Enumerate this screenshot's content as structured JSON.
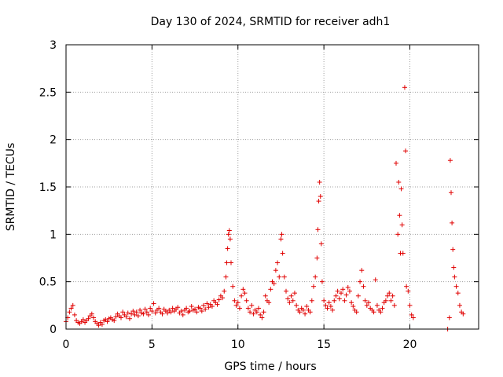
{
  "chart_data": {
    "type": "scatter",
    "title": "Day 130 of 2024, SRMTID for receiver adh1",
    "xlabel": "GPS time / hours",
    "ylabel": "SRMTID / TECUs",
    "xlim": [
      0,
      24
    ],
    "ylim": [
      0,
      3
    ],
    "xticks": [
      0,
      5,
      10,
      15,
      20
    ],
    "yticks": [
      0,
      0.5,
      1,
      1.5,
      2,
      2.5,
      3
    ],
    "xtick_labels": [
      "0",
      "5",
      "10",
      "15",
      "20"
    ],
    "ytick_labels": [
      "0",
      "0.5",
      "1",
      "1.5",
      "2",
      "2.5",
      "3"
    ],
    "grid": true,
    "marker": "+",
    "color": "#e00000",
    "series": [
      {
        "name": "adh1",
        "points": [
          [
            0.0,
            0.08
          ],
          [
            0.1,
            0.12
          ],
          [
            0.2,
            0.18
          ],
          [
            0.3,
            0.22
          ],
          [
            0.4,
            0.25
          ],
          [
            0.5,
            0.15
          ],
          [
            0.6,
            0.09
          ],
          [
            0.7,
            0.07
          ],
          [
            0.8,
            0.06
          ],
          [
            0.9,
            0.08
          ],
          [
            1.0,
            0.1
          ],
          [
            1.1,
            0.07
          ],
          [
            1.2,
            0.09
          ],
          [
            1.3,
            0.11
          ],
          [
            1.4,
            0.14
          ],
          [
            1.5,
            0.16
          ],
          [
            1.6,
            0.12
          ],
          [
            1.7,
            0.08
          ],
          [
            1.8,
            0.06
          ],
          [
            1.9,
            0.04
          ],
          [
            2.0,
            0.07
          ],
          [
            2.1,
            0.05
          ],
          [
            2.2,
            0.09
          ],
          [
            2.3,
            0.1
          ],
          [
            2.4,
            0.08
          ],
          [
            2.5,
            0.11
          ],
          [
            2.6,
            0.12
          ],
          [
            2.7,
            0.1
          ],
          [
            2.8,
            0.09
          ],
          [
            2.9,
            0.13
          ],
          [
            3.0,
            0.16
          ],
          [
            3.1,
            0.14
          ],
          [
            3.2,
            0.12
          ],
          [
            3.3,
            0.18
          ],
          [
            3.4,
            0.15
          ],
          [
            3.5,
            0.13
          ],
          [
            3.6,
            0.17
          ],
          [
            3.7,
            0.11
          ],
          [
            3.8,
            0.16
          ],
          [
            3.9,
            0.19
          ],
          [
            4.0,
            0.15
          ],
          [
            4.1,
            0.18
          ],
          [
            4.2,
            0.14
          ],
          [
            4.3,
            0.2
          ],
          [
            4.4,
            0.17
          ],
          [
            4.5,
            0.16
          ],
          [
            4.6,
            0.21
          ],
          [
            4.7,
            0.18
          ],
          [
            4.8,
            0.15
          ],
          [
            4.9,
            0.22
          ],
          [
            5.0,
            0.19
          ],
          [
            5.1,
            0.27
          ],
          [
            5.2,
            0.17
          ],
          [
            5.3,
            0.2
          ],
          [
            5.4,
            0.22
          ],
          [
            5.5,
            0.18
          ],
          [
            5.6,
            0.16
          ],
          [
            5.7,
            0.21
          ],
          [
            5.8,
            0.19
          ],
          [
            5.9,
            0.17
          ],
          [
            6.0,
            0.2
          ],
          [
            6.1,
            0.18
          ],
          [
            6.2,
            0.22
          ],
          [
            6.3,
            0.19
          ],
          [
            6.4,
            0.21
          ],
          [
            6.5,
            0.23
          ],
          [
            6.6,
            0.17
          ],
          [
            6.7,
            0.19
          ],
          [
            6.8,
            0.15
          ],
          [
            6.9,
            0.2
          ],
          [
            7.0,
            0.22
          ],
          [
            7.1,
            0.18
          ],
          [
            7.2,
            0.19
          ],
          [
            7.3,
            0.24
          ],
          [
            7.4,
            0.2
          ],
          [
            7.5,
            0.21
          ],
          [
            7.6,
            0.18
          ],
          [
            7.7,
            0.23
          ],
          [
            7.8,
            0.22
          ],
          [
            7.9,
            0.19
          ],
          [
            8.0,
            0.25
          ],
          [
            8.1,
            0.21
          ],
          [
            8.2,
            0.27
          ],
          [
            8.3,
            0.23
          ],
          [
            8.4,
            0.26
          ],
          [
            8.5,
            0.24
          ],
          [
            8.6,
            0.3
          ],
          [
            8.7,
            0.28
          ],
          [
            8.8,
            0.26
          ],
          [
            8.9,
            0.31
          ],
          [
            9.0,
            0.35
          ],
          [
            9.1,
            0.33
          ],
          [
            9.2,
            0.4
          ],
          [
            9.3,
            0.55
          ],
          [
            9.35,
            0.7
          ],
          [
            9.4,
            0.85
          ],
          [
            9.45,
            1.0
          ],
          [
            9.5,
            1.04
          ],
          [
            9.55,
            0.95
          ],
          [
            9.6,
            0.7
          ],
          [
            9.7,
            0.45
          ],
          [
            9.8,
            0.3
          ],
          [
            9.9,
            0.25
          ],
          [
            10.0,
            0.28
          ],
          [
            10.1,
            0.22
          ],
          [
            10.2,
            0.35
          ],
          [
            10.3,
            0.42
          ],
          [
            10.4,
            0.38
          ],
          [
            10.5,
            0.3
          ],
          [
            10.6,
            0.22
          ],
          [
            10.7,
            0.18
          ],
          [
            10.8,
            0.25
          ],
          [
            10.9,
            0.16
          ],
          [
            11.0,
            0.2
          ],
          [
            11.1,
            0.18
          ],
          [
            11.2,
            0.22
          ],
          [
            11.3,
            0.15
          ],
          [
            11.4,
            0.12
          ],
          [
            11.5,
            0.18
          ],
          [
            11.6,
            0.35
          ],
          [
            11.7,
            0.3
          ],
          [
            11.8,
            0.28
          ],
          [
            11.9,
            0.42
          ],
          [
            12.0,
            0.5
          ],
          [
            12.1,
            0.48
          ],
          [
            12.2,
            0.62
          ],
          [
            12.3,
            0.7
          ],
          [
            12.4,
            0.55
          ],
          [
            12.5,
            0.95
          ],
          [
            12.55,
            1.0
          ],
          [
            12.6,
            0.8
          ],
          [
            12.7,
            0.55
          ],
          [
            12.8,
            0.4
          ],
          [
            12.9,
            0.32
          ],
          [
            13.0,
            0.28
          ],
          [
            13.1,
            0.35
          ],
          [
            13.2,
            0.3
          ],
          [
            13.3,
            0.38
          ],
          [
            13.4,
            0.25
          ],
          [
            13.5,
            0.2
          ],
          [
            13.6,
            0.18
          ],
          [
            13.7,
            0.22
          ],
          [
            13.8,
            0.2
          ],
          [
            13.9,
            0.16
          ],
          [
            14.0,
            0.24
          ],
          [
            14.1,
            0.2
          ],
          [
            14.2,
            0.18
          ],
          [
            14.3,
            0.3
          ],
          [
            14.4,
            0.45
          ],
          [
            14.5,
            0.55
          ],
          [
            14.6,
            0.75
          ],
          [
            14.65,
            1.05
          ],
          [
            14.7,
            1.35
          ],
          [
            14.75,
            1.55
          ],
          [
            14.8,
            1.4
          ],
          [
            14.85,
            0.9
          ],
          [
            14.9,
            0.5
          ],
          [
            15.0,
            0.3
          ],
          [
            15.1,
            0.25
          ],
          [
            15.2,
            0.22
          ],
          [
            15.3,
            0.28
          ],
          [
            15.4,
            0.24
          ],
          [
            15.5,
            0.2
          ],
          [
            15.6,
            0.3
          ],
          [
            15.7,
            0.35
          ],
          [
            15.8,
            0.4
          ],
          [
            15.9,
            0.32
          ],
          [
            16.0,
            0.38
          ],
          [
            16.1,
            0.42
          ],
          [
            16.2,
            0.3
          ],
          [
            16.3,
            0.36
          ],
          [
            16.4,
            0.44
          ],
          [
            16.5,
            0.4
          ],
          [
            16.6,
            0.28
          ],
          [
            16.7,
            0.24
          ],
          [
            16.8,
            0.2
          ],
          [
            16.9,
            0.18
          ],
          [
            17.0,
            0.35
          ],
          [
            17.1,
            0.5
          ],
          [
            17.2,
            0.62
          ],
          [
            17.3,
            0.45
          ],
          [
            17.4,
            0.3
          ],
          [
            17.5,
            0.25
          ],
          [
            17.6,
            0.28
          ],
          [
            17.7,
            0.22
          ],
          [
            17.8,
            0.2
          ],
          [
            17.9,
            0.18
          ],
          [
            18.0,
            0.52
          ],
          [
            18.1,
            0.25
          ],
          [
            18.2,
            0.2
          ],
          [
            18.3,
            0.18
          ],
          [
            18.4,
            0.22
          ],
          [
            18.5,
            0.28
          ],
          [
            18.6,
            0.3
          ],
          [
            18.7,
            0.35
          ],
          [
            18.8,
            0.38
          ],
          [
            18.9,
            0.3
          ],
          [
            19.0,
            0.35
          ],
          [
            19.1,
            0.25
          ],
          [
            19.2,
            1.75
          ],
          [
            19.3,
            1.0
          ],
          [
            19.35,
            1.55
          ],
          [
            19.4,
            1.2
          ],
          [
            19.45,
            0.8
          ],
          [
            19.5,
            1.48
          ],
          [
            19.55,
            1.1
          ],
          [
            19.6,
            0.8
          ],
          [
            19.7,
            2.55
          ],
          [
            19.75,
            1.88
          ],
          [
            19.8,
            0.45
          ],
          [
            19.9,
            0.4
          ],
          [
            20.0,
            0.25
          ],
          [
            20.1,
            0.15
          ],
          [
            20.2,
            0.12
          ],
          [
            22.2,
            0.0
          ],
          [
            22.3,
            0.12
          ],
          [
            22.35,
            1.78
          ],
          [
            22.4,
            1.44
          ],
          [
            22.45,
            1.12
          ],
          [
            22.5,
            0.84
          ],
          [
            22.55,
            0.65
          ],
          [
            22.6,
            0.55
          ],
          [
            22.7,
            0.45
          ],
          [
            22.8,
            0.38
          ],
          [
            22.9,
            0.25
          ],
          [
            23.0,
            0.18
          ],
          [
            23.1,
            0.16
          ]
        ]
      }
    ]
  }
}
